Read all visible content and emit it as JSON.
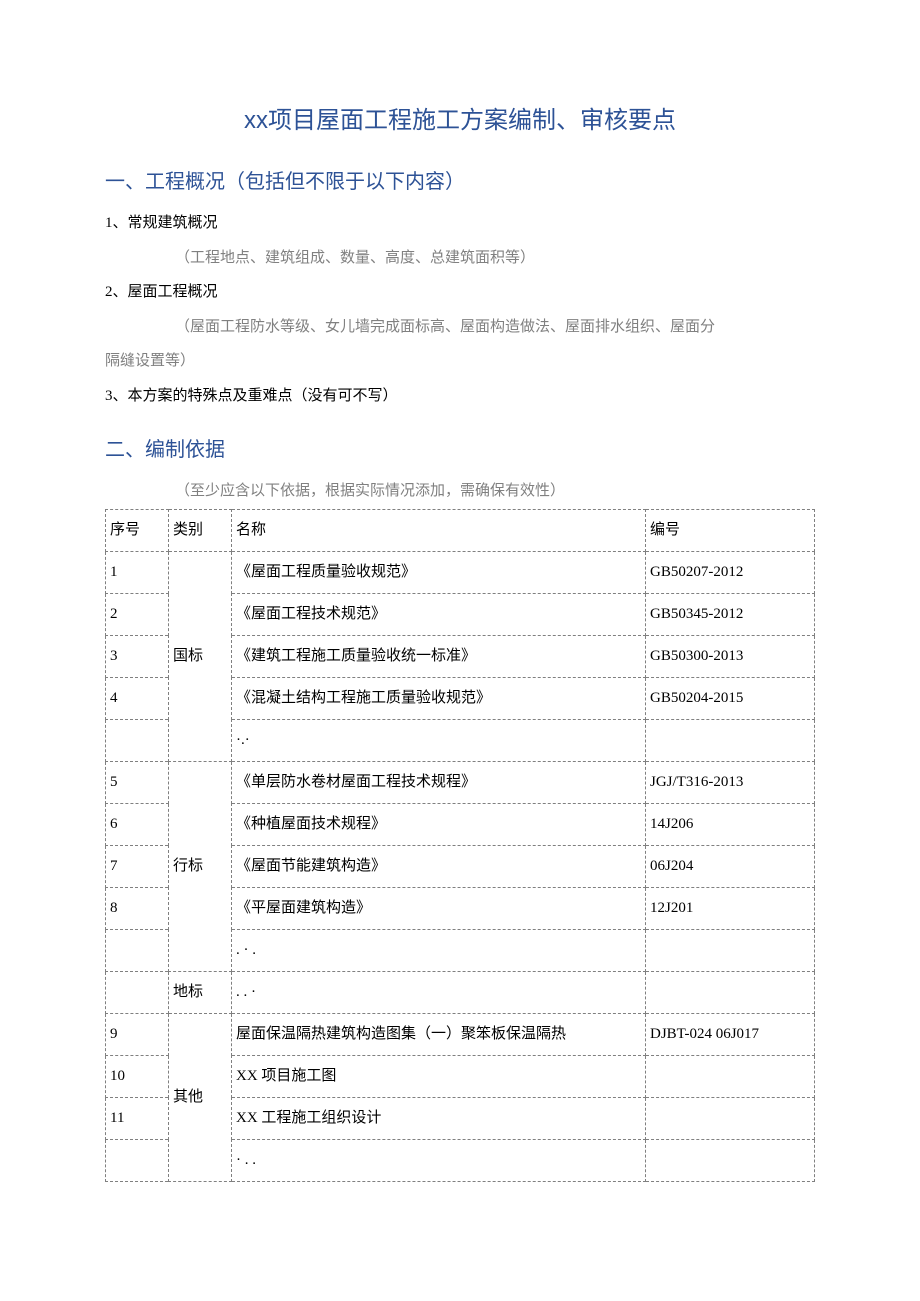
{
  "title_prefix": "xx",
  "title_rest": "项目屋面工程施工方案编制、审核要点",
  "section1": {
    "heading": "一、工程概况（包括但不限于以下内容）",
    "item1_label": "1、常规建筑概况",
    "item1_note": "（工程地点、建筑组成、数量、高度、总建筑面积等）",
    "item2_label": "2、屋面工程概况",
    "item2_note_line1": "（屋面工程防水等级、女儿墙完成面标高、屋面构造做法、屋面排水组织、屋面分",
    "item2_note_line2": "隔缝设置等）",
    "item3_label": "3、本方案的特殊点及重难点（没有可不写）"
  },
  "section2": {
    "heading": "二、编制依据",
    "note": "（至少应含以下依据，根据实际情况添加，需确保有效性）",
    "table": {
      "headers": {
        "seq": "序号",
        "category": "类别",
        "name": "名称",
        "code": "编号"
      },
      "rows": [
        {
          "seq": "1",
          "category": "国标",
          "name": "《屋面工程质量验收规范》",
          "code": "GB50207-2012"
        },
        {
          "seq": "2",
          "category": "",
          "name": "《屋面工程技术规范》",
          "code": "GB50345-2012"
        },
        {
          "seq": "3",
          "category": "",
          "name": "《建筑工程施工质量验收统一标准》",
          "code": "GB50300-2013"
        },
        {
          "seq": "4",
          "category": "",
          "name": "《混凝土结构工程施工质量验收规范》",
          "code": "GB50204-2015"
        },
        {
          "seq": "",
          "category": "",
          "name": "·.·",
          "code": ""
        },
        {
          "seq": "5",
          "category": "行标",
          "name": "《单层防水卷材屋面工程技术规程》",
          "code": "JGJ/T316-2013"
        },
        {
          "seq": "6",
          "category": "",
          "name": "《种植屋面技术规程》",
          "code": "14J206"
        },
        {
          "seq": "7",
          "category": "",
          "name": "《屋面节能建筑构造》",
          "code": "06J204"
        },
        {
          "seq": "8",
          "category": "",
          "name": "《平屋面建筑构造》",
          "code": "12J201"
        },
        {
          "seq": "",
          "category": "",
          "name": ". · .",
          "code": ""
        },
        {
          "seq": "",
          "category": "地标",
          "name": ". . ·",
          "code": ""
        },
        {
          "seq": "9",
          "category": "",
          "name": "屋面保温隔热建筑构造图集（一）聚笨板保温隔热",
          "code": "DJBT-024 06J017"
        },
        {
          "seq": "10",
          "category": "其他",
          "name": "XX 项目施工图",
          "code": ""
        },
        {
          "seq": "11",
          "category": "",
          "name": "XX 工程施工组织设计",
          "code": ""
        },
        {
          "seq": "",
          "category": "",
          "name": "· . .",
          "code": ""
        }
      ]
    }
  }
}
